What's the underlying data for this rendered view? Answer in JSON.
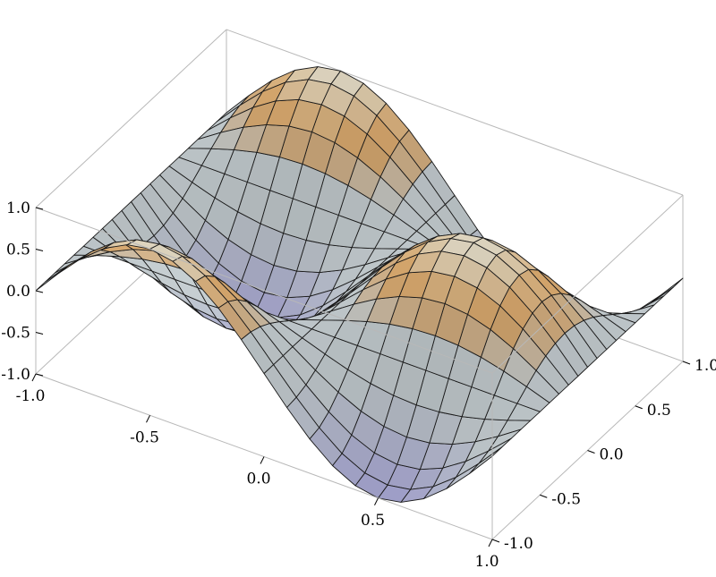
{
  "chart_data": {
    "type": "surface3d",
    "title": "",
    "xlabel": "",
    "ylabel": "",
    "zlabel": "",
    "x_range": [
      -1,
      1
    ],
    "y_range": [
      -1,
      1
    ],
    "z_range": [
      -1,
      1
    ],
    "x_ticks": [
      "-1.0",
      "-0.5",
      "0.0",
      "0.5",
      "1.0"
    ],
    "y_ticks": [
      "-1.0",
      "-0.5",
      "0.0",
      "0.5",
      "1.0"
    ],
    "z_ticks": [
      "-1.0",
      "-0.5",
      "0.0",
      "0.5",
      "1.0"
    ],
    "function": "z = sin(pi*x) * cos(pi*y)",
    "mesh_lines": 20,
    "box": true,
    "grid": false,
    "colors": {
      "bounding_box": "#b8b8b8",
      "mesh": "#1a1a1a",
      "surface_low": "#b7b6e8",
      "surface_mid": "#f2b46a",
      "surface_high": "#fffbe8",
      "surface_neutral": "#d9e2e6"
    }
  }
}
